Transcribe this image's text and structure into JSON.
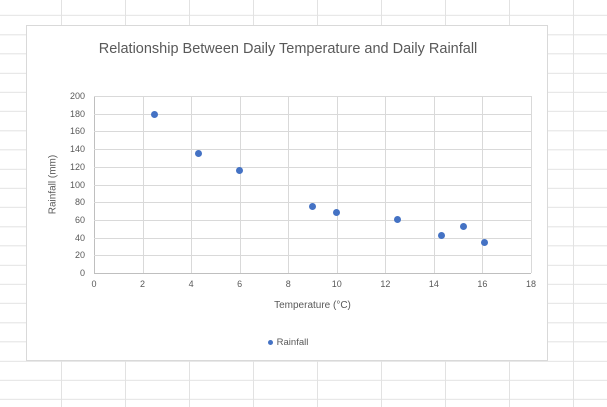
{
  "chart": {
    "title": "Relationship Between Daily Temperature and Daily Rainfall",
    "x_axis_title": "Temperature (°C)",
    "y_axis_title": "Rainfall (mm)",
    "legend_label": "Rainfall",
    "colors": {
      "point": "#4472C4",
      "gridline": "#d9d9d9",
      "axis_line": "#bfbfbf",
      "text": "#595959",
      "chart_border": "#d9d9d9",
      "spreadsheet_gridline": "#e2e2e2"
    }
  },
  "chart_data": {
    "type": "scatter",
    "title": "Relationship Between Daily Temperature and Daily Rainfall",
    "xlabel": "Temperature (°C)",
    "ylabel": "Rainfall (mm)",
    "xlim": [
      0,
      18
    ],
    "ylim": [
      0,
      200
    ],
    "x_ticks": [
      0,
      2,
      4,
      6,
      8,
      10,
      12,
      14,
      16,
      18
    ],
    "y_ticks": [
      0,
      20,
      40,
      60,
      80,
      100,
      120,
      140,
      160,
      180,
      200
    ],
    "grid": true,
    "legend_position": "bottom",
    "series": [
      {
        "name": "Rainfall",
        "points": [
          {
            "x": 2.5,
            "y": 179
          },
          {
            "x": 4.3,
            "y": 135
          },
          {
            "x": 6.0,
            "y": 116
          },
          {
            "x": 9.0,
            "y": 75
          },
          {
            "x": 10.0,
            "y": 68
          },
          {
            "x": 12.5,
            "y": 61
          },
          {
            "x": 14.3,
            "y": 42
          },
          {
            "x": 15.2,
            "y": 53
          },
          {
            "x": 16.1,
            "y": 35
          }
        ]
      }
    ]
  }
}
